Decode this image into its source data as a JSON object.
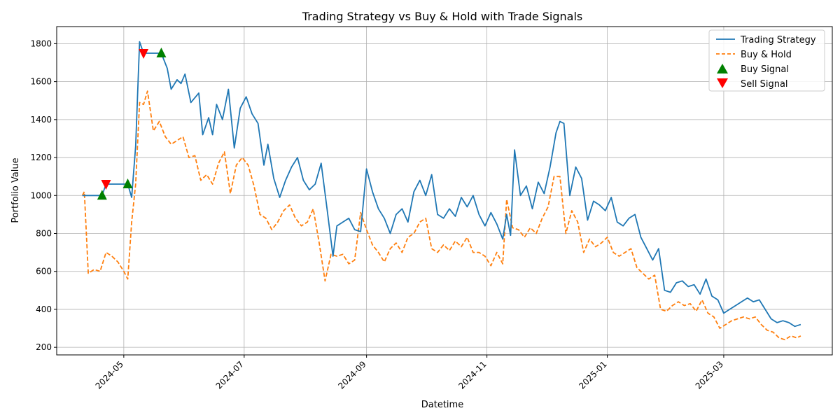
{
  "chart_data": {
    "type": "line",
    "title": "Trading Strategy vs Buy & Hold with Trade Signals",
    "xlabel": "Datetime",
    "ylabel": "Portfolio Value",
    "xlim": [
      "2024-03-28",
      "2025-04-25"
    ],
    "ylim": [
      160,
      1890
    ],
    "x_ticks": [
      "2024-05",
      "2024-07",
      "2024-09",
      "2024-11",
      "2025-01",
      "2025-03"
    ],
    "y_ticks": [
      200,
      400,
      600,
      800,
      1000,
      1200,
      1400,
      1600,
      1800
    ],
    "grid": true,
    "legend_position": "top-right",
    "legend": [
      "Trading Strategy",
      "Buy & Hold",
      "Buy Signal",
      "Sell Signal"
    ],
    "colors": {
      "strategy": "#1f77b4",
      "buy_hold": "#ff7f0e",
      "buy_signal": "#008000",
      "sell_signal": "#ff0000"
    },
    "series": [
      {
        "name": "Trading Strategy",
        "style": "solid",
        "points": [
          [
            "2024-04-10",
            1000
          ],
          [
            "2024-04-20",
            1000
          ],
          [
            "2024-04-22",
            1060
          ],
          [
            "2024-05-03",
            1060
          ],
          [
            "2024-05-05",
            990
          ],
          [
            "2024-05-07",
            1260
          ],
          [
            "2024-05-09",
            1810
          ],
          [
            "2024-05-11",
            1750
          ],
          [
            "2024-05-20",
            1750
          ],
          [
            "2024-05-23",
            1670
          ],
          [
            "2024-05-25",
            1560
          ],
          [
            "2024-05-28",
            1610
          ],
          [
            "2024-05-30",
            1590
          ],
          [
            "2024-06-01",
            1640
          ],
          [
            "2024-06-04",
            1490
          ],
          [
            "2024-06-08",
            1540
          ],
          [
            "2024-06-10",
            1320
          ],
          [
            "2024-06-13",
            1410
          ],
          [
            "2024-06-15",
            1320
          ],
          [
            "2024-06-17",
            1480
          ],
          [
            "2024-06-20",
            1400
          ],
          [
            "2024-06-23",
            1560
          ],
          [
            "2024-06-26",
            1250
          ],
          [
            "2024-06-29",
            1460
          ],
          [
            "2024-07-02",
            1520
          ],
          [
            "2024-07-05",
            1430
          ],
          [
            "2024-07-08",
            1380
          ],
          [
            "2024-07-11",
            1160
          ],
          [
            "2024-07-13",
            1270
          ],
          [
            "2024-07-16",
            1090
          ],
          [
            "2024-07-19",
            990
          ],
          [
            "2024-07-22",
            1080
          ],
          [
            "2024-07-25",
            1150
          ],
          [
            "2024-07-28",
            1200
          ],
          [
            "2024-07-31",
            1080
          ],
          [
            "2024-08-03",
            1030
          ],
          [
            "2024-08-06",
            1060
          ],
          [
            "2024-08-09",
            1170
          ],
          [
            "2024-08-12",
            930
          ],
          [
            "2024-08-15",
            680
          ],
          [
            "2024-08-17",
            840
          ],
          [
            "2024-08-20",
            860
          ],
          [
            "2024-08-23",
            880
          ],
          [
            "2024-08-26",
            820
          ],
          [
            "2024-08-29",
            810
          ],
          [
            "2024-09-01",
            1140
          ],
          [
            "2024-09-04",
            1020
          ],
          [
            "2024-09-07",
            930
          ],
          [
            "2024-09-10",
            880
          ],
          [
            "2024-09-13",
            800
          ],
          [
            "2024-09-16",
            900
          ],
          [
            "2024-09-19",
            930
          ],
          [
            "2024-09-22",
            860
          ],
          [
            "2024-09-25",
            1020
          ],
          [
            "2024-09-28",
            1080
          ],
          [
            "2024-10-01",
            1000
          ],
          [
            "2024-10-04",
            1110
          ],
          [
            "2024-10-07",
            900
          ],
          [
            "2024-10-10",
            880
          ],
          [
            "2024-10-13",
            930
          ],
          [
            "2024-10-16",
            890
          ],
          [
            "2024-10-19",
            990
          ],
          [
            "2024-10-22",
            940
          ],
          [
            "2024-10-25",
            1000
          ],
          [
            "2024-10-28",
            900
          ],
          [
            "2024-10-31",
            840
          ],
          [
            "2024-11-03",
            910
          ],
          [
            "2024-11-06",
            850
          ],
          [
            "2024-11-09",
            770
          ],
          [
            "2024-11-11",
            900
          ],
          [
            "2024-11-13",
            790
          ],
          [
            "2024-11-15",
            1240
          ],
          [
            "2024-11-18",
            1000
          ],
          [
            "2024-11-21",
            1050
          ],
          [
            "2024-11-24",
            930
          ],
          [
            "2024-11-27",
            1070
          ],
          [
            "2024-11-30",
            1010
          ],
          [
            "2024-12-03",
            1150
          ],
          [
            "2024-12-06",
            1330
          ],
          [
            "2024-12-08",
            1390
          ],
          [
            "2024-12-10",
            1380
          ],
          [
            "2024-12-13",
            1000
          ],
          [
            "2024-12-16",
            1150
          ],
          [
            "2024-12-19",
            1090
          ],
          [
            "2024-12-22",
            870
          ],
          [
            "2024-12-25",
            970
          ],
          [
            "2024-12-28",
            950
          ],
          [
            "2024-12-31",
            920
          ],
          [
            "2025-01-03",
            990
          ],
          [
            "2025-01-06",
            860
          ],
          [
            "2025-01-09",
            840
          ],
          [
            "2025-01-12",
            880
          ],
          [
            "2025-01-15",
            900
          ],
          [
            "2025-01-18",
            780
          ],
          [
            "2025-01-21",
            720
          ],
          [
            "2025-01-24",
            660
          ],
          [
            "2025-01-27",
            720
          ],
          [
            "2025-01-30",
            500
          ],
          [
            "2025-02-02",
            490
          ],
          [
            "2025-02-05",
            540
          ],
          [
            "2025-02-08",
            550
          ],
          [
            "2025-02-11",
            520
          ],
          [
            "2025-02-14",
            530
          ],
          [
            "2025-02-17",
            480
          ],
          [
            "2025-02-20",
            560
          ],
          [
            "2025-02-23",
            470
          ],
          [
            "2025-02-26",
            450
          ],
          [
            "2025-03-01",
            380
          ],
          [
            "2025-03-04",
            400
          ],
          [
            "2025-03-07",
            420
          ],
          [
            "2025-03-10",
            440
          ],
          [
            "2025-03-13",
            460
          ],
          [
            "2025-03-16",
            440
          ],
          [
            "2025-03-19",
            450
          ],
          [
            "2025-03-22",
            400
          ],
          [
            "2025-03-25",
            350
          ],
          [
            "2025-03-28",
            330
          ],
          [
            "2025-03-31",
            340
          ],
          [
            "2025-04-03",
            330
          ],
          [
            "2025-04-06",
            310
          ],
          [
            "2025-04-09",
            320
          ]
        ]
      },
      {
        "name": "Buy & Hold",
        "style": "dashed",
        "points": [
          [
            "2024-04-10",
            1000
          ],
          [
            "2024-04-11",
            1020
          ],
          [
            "2024-04-13",
            590
          ],
          [
            "2024-04-16",
            610
          ],
          [
            "2024-04-19",
            600
          ],
          [
            "2024-04-22",
            700
          ],
          [
            "2024-04-25",
            680
          ],
          [
            "2024-04-28",
            650
          ],
          [
            "2024-05-01",
            600
          ],
          [
            "2024-05-03",
            560
          ],
          [
            "2024-05-05",
            860
          ],
          [
            "2024-05-07",
            1060
          ],
          [
            "2024-05-09",
            1490
          ],
          [
            "2024-05-11",
            1480
          ],
          [
            "2024-05-13",
            1550
          ],
          [
            "2024-05-16",
            1340
          ],
          [
            "2024-05-19",
            1390
          ],
          [
            "2024-05-22",
            1310
          ],
          [
            "2024-05-25",
            1270
          ],
          [
            "2024-05-28",
            1290
          ],
          [
            "2024-05-31",
            1310
          ],
          [
            "2024-06-03",
            1200
          ],
          [
            "2024-06-06",
            1210
          ],
          [
            "2024-06-09",
            1080
          ],
          [
            "2024-06-12",
            1110
          ],
          [
            "2024-06-15",
            1060
          ],
          [
            "2024-06-18",
            1170
          ],
          [
            "2024-06-21",
            1230
          ],
          [
            "2024-06-24",
            1010
          ],
          [
            "2024-06-27",
            1160
          ],
          [
            "2024-06-30",
            1200
          ],
          [
            "2024-07-03",
            1160
          ],
          [
            "2024-07-06",
            1050
          ],
          [
            "2024-07-09",
            900
          ],
          [
            "2024-07-12",
            880
          ],
          [
            "2024-07-15",
            820
          ],
          [
            "2024-07-18",
            860
          ],
          [
            "2024-07-21",
            920
          ],
          [
            "2024-07-24",
            950
          ],
          [
            "2024-07-27",
            880
          ],
          [
            "2024-07-30",
            840
          ],
          [
            "2024-08-02",
            860
          ],
          [
            "2024-08-05",
            930
          ],
          [
            "2024-08-08",
            750
          ],
          [
            "2024-08-11",
            550
          ],
          [
            "2024-08-14",
            690
          ],
          [
            "2024-08-17",
            680
          ],
          [
            "2024-08-20",
            690
          ],
          [
            "2024-08-23",
            640
          ],
          [
            "2024-08-26",
            660
          ],
          [
            "2024-08-29",
            910
          ],
          [
            "2024-09-01",
            820
          ],
          [
            "2024-09-04",
            740
          ],
          [
            "2024-09-07",
            700
          ],
          [
            "2024-09-10",
            650
          ],
          [
            "2024-09-13",
            720
          ],
          [
            "2024-09-16",
            750
          ],
          [
            "2024-09-19",
            700
          ],
          [
            "2024-09-22",
            780
          ],
          [
            "2024-09-25",
            800
          ],
          [
            "2024-09-28",
            860
          ],
          [
            "2024-10-01",
            880
          ],
          [
            "2024-10-04",
            720
          ],
          [
            "2024-10-07",
            700
          ],
          [
            "2024-10-10",
            740
          ],
          [
            "2024-10-13",
            710
          ],
          [
            "2024-10-16",
            760
          ],
          [
            "2024-10-19",
            730
          ],
          [
            "2024-10-22",
            780
          ],
          [
            "2024-10-25",
            700
          ],
          [
            "2024-10-28",
            700
          ],
          [
            "2024-10-31",
            680
          ],
          [
            "2024-11-03",
            630
          ],
          [
            "2024-11-06",
            700
          ],
          [
            "2024-11-09",
            640
          ],
          [
            "2024-11-11",
            980
          ],
          [
            "2024-11-14",
            830
          ],
          [
            "2024-11-17",
            820
          ],
          [
            "2024-11-20",
            780
          ],
          [
            "2024-11-23",
            830
          ],
          [
            "2024-11-26",
            800
          ],
          [
            "2024-11-29",
            880
          ],
          [
            "2024-12-02",
            940
          ],
          [
            "2024-12-05",
            1100
          ],
          [
            "2024-12-08",
            1100
          ],
          [
            "2024-12-11",
            800
          ],
          [
            "2024-12-14",
            920
          ],
          [
            "2024-12-17",
            860
          ],
          [
            "2024-12-20",
            700
          ],
          [
            "2024-12-23",
            770
          ],
          [
            "2024-12-26",
            730
          ],
          [
            "2024-12-29",
            750
          ],
          [
            "2025-01-01",
            780
          ],
          [
            "2025-01-04",
            700
          ],
          [
            "2025-01-07",
            680
          ],
          [
            "2025-01-10",
            700
          ],
          [
            "2025-01-13",
            720
          ],
          [
            "2025-01-16",
            620
          ],
          [
            "2025-01-19",
            590
          ],
          [
            "2025-01-22",
            560
          ],
          [
            "2025-01-25",
            580
          ],
          [
            "2025-01-28",
            400
          ],
          [
            "2025-01-31",
            390
          ],
          [
            "2025-02-03",
            420
          ],
          [
            "2025-02-06",
            440
          ],
          [
            "2025-02-09",
            420
          ],
          [
            "2025-02-12",
            430
          ],
          [
            "2025-02-15",
            390
          ],
          [
            "2025-02-18",
            450
          ],
          [
            "2025-02-21",
            380
          ],
          [
            "2025-02-24",
            360
          ],
          [
            "2025-02-27",
            300
          ],
          [
            "2025-03-02",
            320
          ],
          [
            "2025-03-05",
            340
          ],
          [
            "2025-03-08",
            350
          ],
          [
            "2025-03-11",
            360
          ],
          [
            "2025-03-14",
            350
          ],
          [
            "2025-03-17",
            360
          ],
          [
            "2025-03-20",
            320
          ],
          [
            "2025-03-23",
            290
          ],
          [
            "2025-03-26",
            280
          ],
          [
            "2025-03-29",
            250
          ],
          [
            "2025-04-01",
            240
          ],
          [
            "2025-04-04",
            260
          ],
          [
            "2025-04-07",
            250
          ],
          [
            "2025-04-09",
            260
          ]
        ]
      }
    ],
    "buy_signals": [
      [
        "2024-04-20",
        1000
      ],
      [
        "2024-05-03",
        1060
      ],
      [
        "2024-05-20",
        1750
      ]
    ],
    "sell_signals": [
      [
        "2024-04-22",
        1060
      ],
      [
        "2024-05-11",
        1750
      ]
    ]
  }
}
